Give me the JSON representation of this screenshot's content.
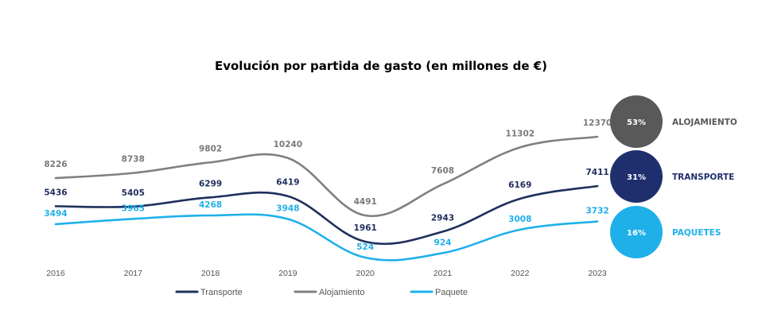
{
  "chart_data": {
    "type": "line",
    "title": "Evolución por partida de gasto (en millones de €)",
    "categories": [
      "2016",
      "2017",
      "2018",
      "2019",
      "2020",
      "2021",
      "2022",
      "2023"
    ],
    "series": [
      {
        "name": "Transporte",
        "color": "#1f2f5c",
        "values": [
          5436,
          5405,
          6299,
          6419,
          1961,
          2943,
          6169,
          7411
        ]
      },
      {
        "name": "Alojamiento",
        "color": "#808080",
        "values": [
          8226,
          8738,
          9802,
          10240,
          4491,
          7608,
          11302,
          12370
        ]
      },
      {
        "name": "Paquete",
        "color": "#1fb0ea",
        "values": [
          3494,
          3965,
          4268,
          3948,
          524,
          924,
          3008,
          3732
        ]
      }
    ],
    "legend_position": "bottom",
    "grid": false,
    "share_badges": [
      {
        "share": "53%",
        "label": "ALOJAMIENTO",
        "color": "#595959"
      },
      {
        "share": "31%",
        "label": "TRANSPORTE",
        "color": "#1f2f6e"
      },
      {
        "share": "16%",
        "label": "PAQUETES",
        "color": "#1fb0ea"
      }
    ]
  }
}
